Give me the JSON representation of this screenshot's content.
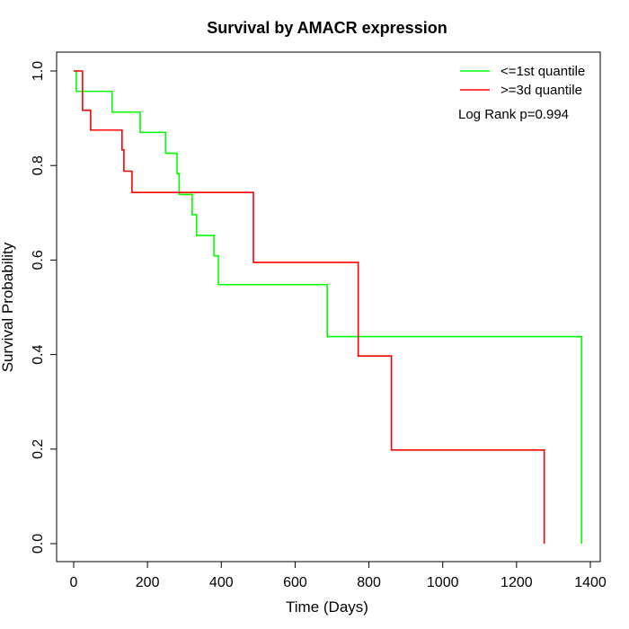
{
  "chart_data": {
    "type": "line",
    "title": "Survival by AMACR expression",
    "xlabel": "Time (Days)",
    "ylabel": "Survival Probability",
    "xlim": [
      0,
      1400
    ],
    "ylim": [
      0,
      1
    ],
    "xticks": [
      "0",
      "200",
      "400",
      "600",
      "800",
      "1000",
      "1200",
      "1400"
    ],
    "xtick_values": [
      0,
      200,
      400,
      600,
      800,
      1000,
      1200,
      1400
    ],
    "yticks": [
      "0.0",
      "0.2",
      "0.4",
      "0.6",
      "0.8",
      "1.0"
    ],
    "ytick_values": [
      0,
      0.2,
      0.4,
      0.6,
      0.8,
      1.0
    ],
    "legend_position": "top-right",
    "annotation": "Log Rank p=0.994",
    "series": [
      {
        "name": "<=1st quantile",
        "color": "#00ff00",
        "step": "post",
        "x": [
          0,
          7,
          104,
          180,
          249,
          280,
          286,
          321,
          333,
          380,
          392,
          687,
          1376
        ],
        "y": [
          1.0,
          0.957,
          0.913,
          0.87,
          0.826,
          0.783,
          0.739,
          0.696,
          0.652,
          0.609,
          0.548,
          0.438,
          0.0
        ]
      },
      {
        "name": ">=3d quantile",
        "color": "#ff0000",
        "step": "post",
        "x": [
          0,
          24,
          46,
          131,
          136,
          158,
          487,
          771,
          861,
          1275
        ],
        "y": [
          1.0,
          0.917,
          0.875,
          0.833,
          0.788,
          0.743,
          0.595,
          0.397,
          0.198,
          0.0
        ]
      }
    ]
  }
}
